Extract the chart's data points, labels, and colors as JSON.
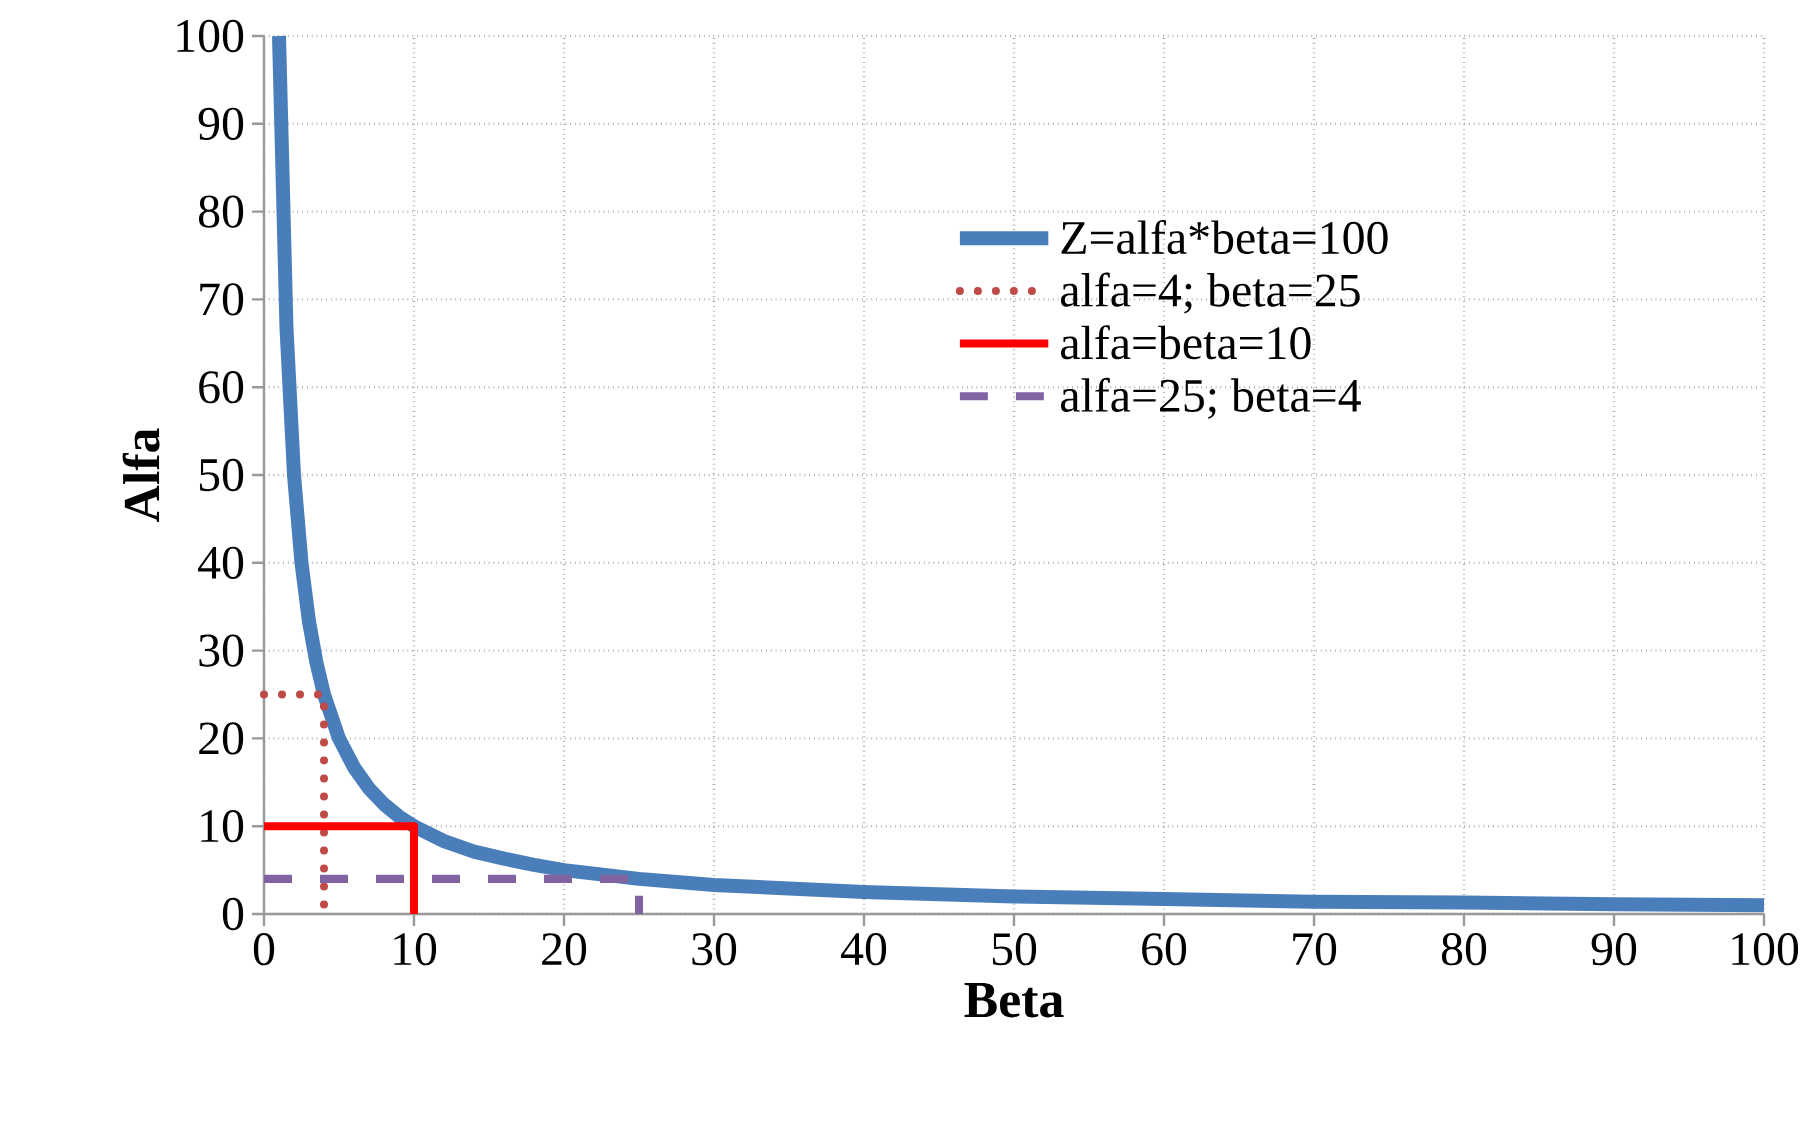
{
  "chart_data": {
    "type": "line",
    "xlabel": "Beta",
    "ylabel": "Alfa",
    "xlim": [
      0,
      100
    ],
    "ylim": [
      0,
      100
    ],
    "xticks": [
      0,
      10,
      20,
      30,
      40,
      50,
      60,
      70,
      80,
      90,
      100
    ],
    "yticks": [
      0,
      10,
      20,
      30,
      40,
      50,
      60,
      70,
      80,
      90,
      100
    ],
    "grid": true,
    "legend": "top right",
    "marker": "none",
    "series": [
      {
        "name": "Z=alfa*beta=100",
        "color": "#4a7ebb",
        "line_style": "solid",
        "x": [
          1,
          1.5,
          2,
          2.5,
          3,
          3.5,
          4,
          5,
          6,
          7,
          8,
          9,
          10,
          12,
          14,
          16,
          18,
          20,
          25,
          30,
          35,
          40,
          50,
          60,
          70,
          80,
          90,
          100
        ],
        "values": [
          100,
          66.7,
          50,
          40,
          33.3,
          28.6,
          25,
          20,
          16.7,
          14.3,
          12.5,
          11.1,
          10,
          8.3,
          7.1,
          6.3,
          5.6,
          5,
          4,
          3.3,
          2.9,
          2.5,
          2,
          1.7,
          1.4,
          1.3,
          1.1,
          1
        ]
      },
      {
        "name": "alfa=4; beta=25",
        "color": "#be4b48",
        "line_style": "dotted",
        "x": [
          0,
          4,
          4
        ],
        "values": [
          25,
          25,
          0
        ]
      },
      {
        "name": "alfa=beta=10",
        "color": "#ff0000",
        "line_style": "solid",
        "x": [
          0,
          10,
          10
        ],
        "values": [
          10,
          10,
          0
        ]
      },
      {
        "name": "alfa=25; beta=4",
        "color": "#8064a2",
        "line_style": "dashed",
        "x": [
          0,
          25,
          25
        ],
        "values": [
          4,
          4,
          0
        ]
      }
    ]
  }
}
